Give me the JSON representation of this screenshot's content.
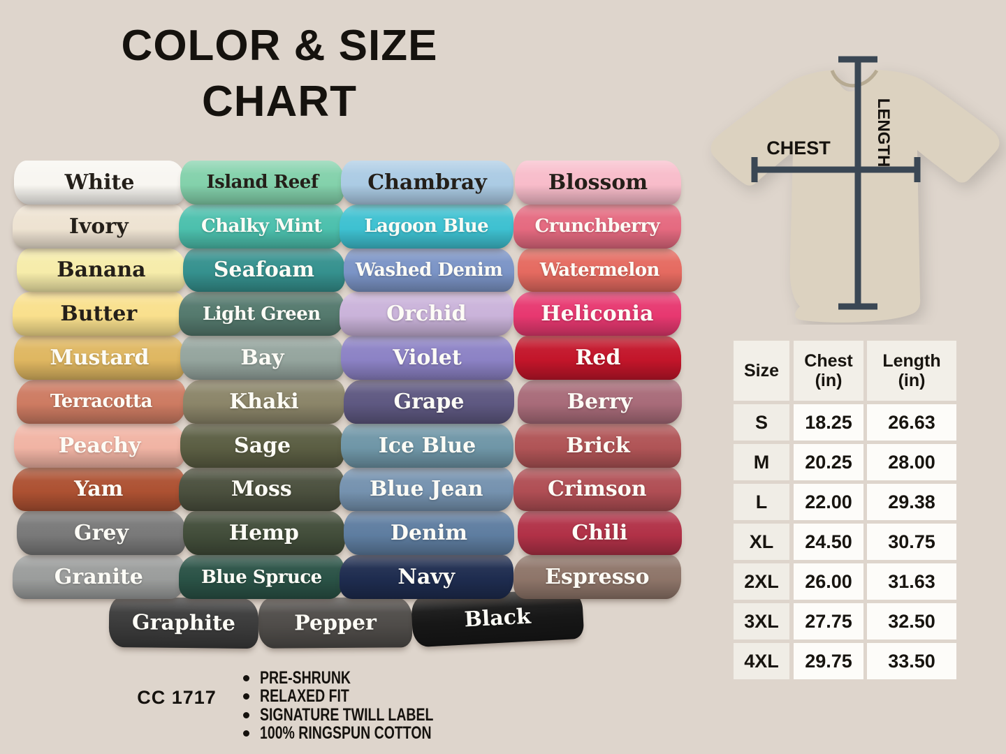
{
  "background_color": "#ded5cc",
  "title": {
    "line1": "COLOR & SIZE",
    "line2": "CHART"
  },
  "measurement_diagram": {
    "chest_label": "CHEST",
    "length_label": "LENGTH",
    "shirt_color": "#dcd2c0",
    "collar_color": "#b6aa92",
    "line_color": "#3a4754"
  },
  "color_grid": {
    "columns": [
      {
        "items": [
          {
            "name": "White",
            "color": "#f8f6f1",
            "text": "dark"
          },
          {
            "name": "Ivory",
            "color": "#eee3d2",
            "text": "dark"
          },
          {
            "name": "Banana",
            "color": "#f6ecaa",
            "text": "dark"
          },
          {
            "name": "Butter",
            "color": "#f9e08d",
            "text": "dark"
          },
          {
            "name": "Mustard",
            "color": "#dfb761",
            "text": "light"
          },
          {
            "name": "Terracotta",
            "color": "#cd7b62",
            "text": "light"
          },
          {
            "name": "Peachy",
            "color": "#f1b4a4",
            "text": "light"
          },
          {
            "name": "Yam",
            "color": "#ad5132",
            "text": "light"
          },
          {
            "name": "Grey",
            "color": "#797979",
            "text": "light"
          },
          {
            "name": "Granite",
            "color": "#9b9d9c",
            "text": "light"
          }
        ]
      },
      {
        "items": [
          {
            "name": "Island Reef",
            "color": "#83d1ab",
            "text": "dark"
          },
          {
            "name": "Chalky Mint",
            "color": "#4cc0ad",
            "text": "light"
          },
          {
            "name": "Seafoam",
            "color": "#35918e",
            "text": "light"
          },
          {
            "name": "Light Green",
            "color": "#54796d",
            "text": "light"
          },
          {
            "name": "Bay",
            "color": "#95a59e",
            "text": "light"
          },
          {
            "name": "Khaki",
            "color": "#8b8569",
            "text": "light"
          },
          {
            "name": "Sage",
            "color": "#5b5e43",
            "text": "light"
          },
          {
            "name": "Moss",
            "color": "#4b503e",
            "text": "light"
          },
          {
            "name": "Hemp",
            "color": "#424d3a",
            "text": "light"
          },
          {
            "name": "Blue Spruce",
            "color": "#2a5246",
            "text": "light"
          }
        ]
      },
      {
        "items": [
          {
            "name": "Chambray",
            "color": "#abcbe4",
            "text": "dark"
          },
          {
            "name": "Lagoon Blue",
            "color": "#3ec1d1",
            "text": "light"
          },
          {
            "name": "Washed Denim",
            "color": "#7b94c6",
            "text": "light"
          },
          {
            "name": "Orchid",
            "color": "#cab3da",
            "text": "light"
          },
          {
            "name": "Violet",
            "color": "#8c82c5",
            "text": "light"
          },
          {
            "name": "Grape",
            "color": "#5e5881",
            "text": "light"
          },
          {
            "name": "Ice Blue",
            "color": "#6f96a7",
            "text": "light"
          },
          {
            "name": "Blue Jean",
            "color": "#7592af",
            "text": "light"
          },
          {
            "name": "Denim",
            "color": "#5e7da0",
            "text": "light"
          },
          {
            "name": "Navy",
            "color": "#1e2c4f",
            "text": "light"
          }
        ]
      },
      {
        "items": [
          {
            "name": "Blossom",
            "color": "#f8bcca",
            "text": "dark"
          },
          {
            "name": "Crunchberry",
            "color": "#e56a80",
            "text": "light"
          },
          {
            "name": "Watermelon",
            "color": "#e56a60",
            "text": "light"
          },
          {
            "name": "Heliconia",
            "color": "#e73870",
            "text": "light"
          },
          {
            "name": "Red",
            "color": "#c3152a",
            "text": "light"
          },
          {
            "name": "Berry",
            "color": "#a86b79",
            "text": "light"
          },
          {
            "name": "Brick",
            "color": "#b05456",
            "text": "light"
          },
          {
            "name": "Crimson",
            "color": "#b04e54",
            "text": "light"
          },
          {
            "name": "Chili",
            "color": "#b13147",
            "text": "light"
          },
          {
            "name": "Espresso",
            "color": "#8e7569",
            "text": "light"
          }
        ]
      }
    ],
    "bottom_row": [
      {
        "name": "Graphite",
        "color": "#3b3b3b",
        "text": "light"
      },
      {
        "name": "Pepper",
        "color": "#4f4c49",
        "text": "light"
      },
      {
        "name": "Black",
        "color": "#171717",
        "text": "light"
      }
    ]
  },
  "size_table": {
    "headers": [
      {
        "label": "Size",
        "sub": ""
      },
      {
        "label": "Chest",
        "sub": "(in)"
      },
      {
        "label": "Length",
        "sub": "(in)"
      }
    ],
    "rows": [
      {
        "size": "S",
        "chest": "18.25",
        "length": "26.63"
      },
      {
        "size": "M",
        "chest": "20.25",
        "length": "28.00"
      },
      {
        "size": "L",
        "chest": "22.00",
        "length": "29.38"
      },
      {
        "size": "XL",
        "chest": "24.50",
        "length": "30.75"
      },
      {
        "size": "2XL",
        "chest": "26.00",
        "length": "31.63"
      },
      {
        "size": "3XL",
        "chest": "27.75",
        "length": "32.50"
      },
      {
        "size": "4XL",
        "chest": "29.75",
        "length": "33.50"
      }
    ]
  },
  "footer": {
    "product_code": "CC 1717",
    "features": [
      "PRE-SHRUNK",
      "RELAXED FIT",
      "SIGNATURE TWILL LABEL",
      "100% RINGSPUN COTTON"
    ]
  }
}
